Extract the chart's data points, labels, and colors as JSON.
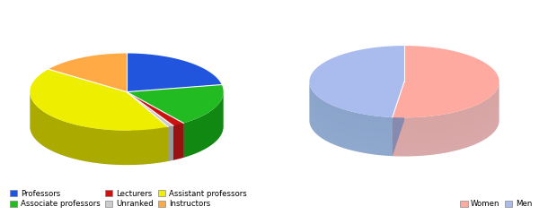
{
  "chart1": {
    "labels": [
      "Professors",
      "Associate professors",
      "Lecturers",
      "Unranked",
      "Assistant professors",
      "Instructors"
    ],
    "values": [
      22,
      18,
      2,
      1,
      42,
      15
    ],
    "colors": [
      "#2255dd",
      "#22bb22",
      "#cc1111",
      "#cccccc",
      "#eeee00",
      "#ffaa44"
    ],
    "edge_colors": [
      "#1133aa",
      "#118811",
      "#991111",
      "#999999",
      "#aaaa00",
      "#cc7722"
    ]
  },
  "chart2": {
    "labels": [
      "Women",
      "Men"
    ],
    "values": [
      52,
      48
    ],
    "colors": [
      "#ffaaa0",
      "#aabbee"
    ],
    "edge_colors": [
      "#cc8888",
      "#6688bb"
    ]
  },
  "legend1": {
    "items": [
      {
        "label": "Professors",
        "color": "#2255dd"
      },
      {
        "label": "Associate professors",
        "color": "#22bb22"
      },
      {
        "label": "Lecturers",
        "color": "#cc1111"
      },
      {
        "label": "Unranked",
        "color": "#cccccc"
      },
      {
        "label": "Assistant professors",
        "color": "#eeee00"
      },
      {
        "label": "Instructors",
        "color": "#ffaa44"
      }
    ]
  },
  "legend2": {
    "items": [
      {
        "label": "Women",
        "color": "#ffaaa0"
      },
      {
        "label": "Men",
        "color": "#aabbee"
      }
    ]
  }
}
